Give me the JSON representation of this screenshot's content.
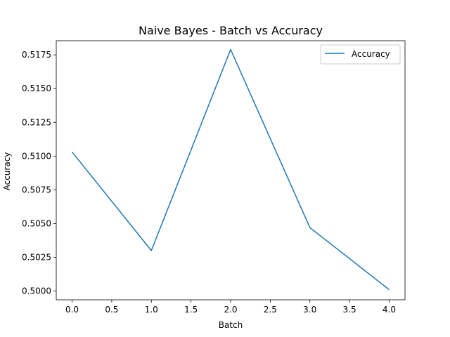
{
  "chart_data": {
    "type": "line",
    "title": "Naive Bayes - Batch vs Accuracy",
    "xlabel": "Batch",
    "ylabel": "Accuracy",
    "x": [
      0,
      1,
      2,
      3,
      4
    ],
    "series": [
      {
        "name": "Accuracy",
        "color": "#1f77b4",
        "values": [
          0.5103,
          0.503,
          0.5179,
          0.5047,
          0.5001
        ]
      }
    ],
    "xlim": [
      -0.2,
      4.2
    ],
    "ylim": [
      0.49935,
      0.51855
    ],
    "xticks": [
      0.0,
      0.5,
      1.0,
      1.5,
      2.0,
      2.5,
      3.0,
      3.5,
      4.0
    ],
    "xtick_labels": [
      "0.0",
      "0.5",
      "1.0",
      "1.5",
      "2.0",
      "2.5",
      "3.0",
      "3.5",
      "4.0"
    ],
    "yticks": [
      0.5,
      0.5025,
      0.505,
      0.5075,
      0.51,
      0.5125,
      0.515,
      0.5175
    ],
    "ytick_labels": [
      "0.5000",
      "0.5025",
      "0.5050",
      "0.5075",
      "0.5100",
      "0.5125",
      "0.5150",
      "0.5175"
    ],
    "grid": false,
    "legend_position": "top-right"
  }
}
